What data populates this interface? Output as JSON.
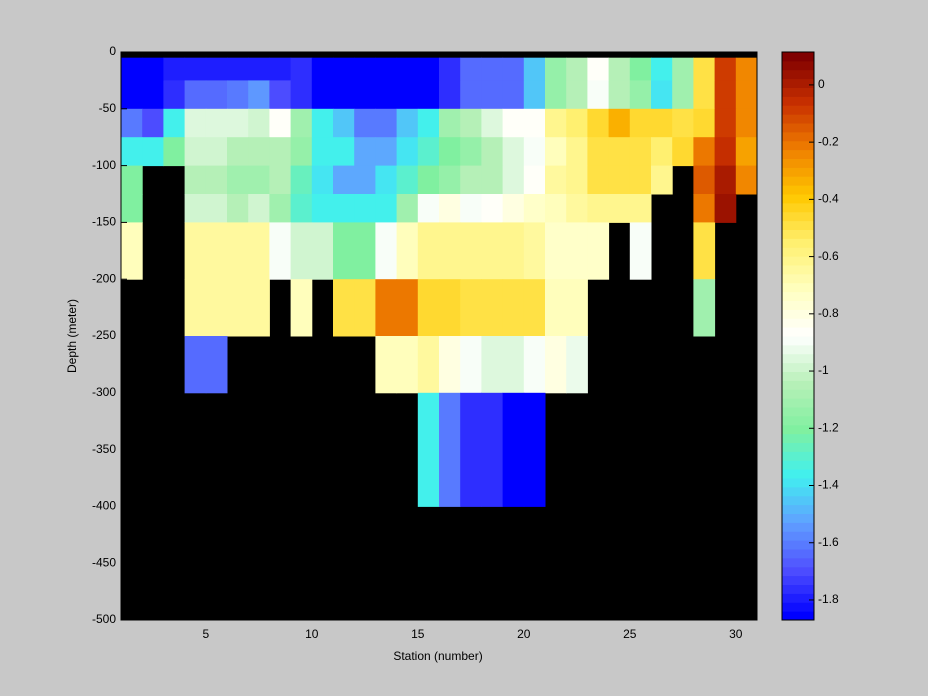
{
  "chart_data": {
    "type": "heatmap",
    "xlabel": "Station (number)",
    "ylabel": "Depth (meter)",
    "x": [
      1,
      2,
      3,
      4,
      5,
      6,
      7,
      8,
      9,
      10,
      11,
      12,
      13,
      14,
      15,
      16,
      17,
      18,
      19,
      20,
      21,
      22,
      23,
      24,
      25,
      26,
      27,
      28,
      29,
      30,
      31
    ],
    "y": [
      0,
      -5,
      -25,
      -50,
      -75,
      -100,
      -125,
      -150,
      -200,
      -250,
      -300,
      -400,
      -500
    ],
    "xlim": [
      1,
      31
    ],
    "ylim": [
      -500,
      0
    ],
    "xticks": [
      5,
      10,
      15,
      20,
      25,
      30
    ],
    "yticks": [
      0,
      -50,
      -100,
      -150,
      -200,
      -250,
      -300,
      -350,
      -400,
      -450,
      -500
    ],
    "background": "#000000",
    "clim": [
      -1.87,
      0.115
    ],
    "cticks": [
      0,
      -0.2,
      -0.4,
      -0.6,
      -0.8,
      -1,
      -1.2,
      -1.4,
      -1.6,
      -1.8
    ],
    "colormap": [
      "#0000ff",
      "#5050ff",
      "#60a0ff",
      "#40f0f0",
      "#80f0a0",
      "#b8f0b8",
      "#ffffff",
      "#ffffc0",
      "#fff070",
      "#ffc800",
      "#f08000",
      "#c83000",
      "#800000"
    ],
    "z": [
      [
        null,
        null,
        null,
        null,
        null,
        null,
        null,
        null,
        null,
        null,
        null,
        null,
        null,
        null,
        null,
        null,
        null,
        null,
        null,
        null,
        null,
        null,
        null,
        null,
        null,
        null,
        null,
        null,
        null,
        null
      ],
      [
        -1.85,
        -1.85,
        -1.8,
        -1.8,
        -1.8,
        -1.8,
        -1.8,
        -1.8,
        -1.75,
        -1.85,
        -1.85,
        -1.85,
        -1.85,
        -1.85,
        -1.85,
        -1.75,
        -1.65,
        -1.65,
        -1.65,
        -1.45,
        -1.15,
        -1.05,
        -0.85,
        -1.05,
        -1.2,
        -1.35,
        -1.1,
        -0.5,
        -0.1,
        -0.25
      ],
      [
        -1.85,
        -1.85,
        -1.75,
        -1.65,
        -1.65,
        -1.62,
        -1.55,
        -1.7,
        -1.75,
        -1.85,
        -1.85,
        -1.85,
        -1.85,
        -1.85,
        -1.85,
        -1.75,
        -1.65,
        -1.65,
        -1.65,
        -1.45,
        -1.15,
        -1.05,
        -0.9,
        -1.05,
        -1.15,
        -1.4,
        -1.1,
        -0.5,
        -0.1,
        -0.25
      ],
      [
        -1.6,
        -1.7,
        -1.35,
        -0.95,
        -0.95,
        -0.95,
        -1.0,
        -0.85,
        -1.1,
        -1.35,
        -1.45,
        -1.6,
        -1.6,
        -1.45,
        -1.35,
        -1.1,
        -1.05,
        -0.95,
        -0.85,
        -0.85,
        -0.62,
        -0.55,
        -0.45,
        -0.35,
        -0.45,
        -0.45,
        -0.5,
        -0.45,
        -0.1,
        -0.25
      ],
      [
        -1.35,
        -1.35,
        -1.2,
        -1.0,
        -1.0,
        -1.05,
        -1.05,
        -1.05,
        -1.15,
        -1.35,
        -1.35,
        -1.5,
        -1.5,
        -1.4,
        -1.3,
        -1.2,
        -1.15,
        -1.05,
        -0.95,
        -0.9,
        -0.7,
        -0.6,
        -0.5,
        -0.5,
        -0.5,
        -0.55,
        -0.45,
        -0.2,
        -0.05,
        -0.3
      ],
      [
        -1.2,
        null,
        null,
        -1.05,
        -1.05,
        -1.1,
        -1.1,
        -1.05,
        -1.25,
        -1.4,
        -1.5,
        -1.5,
        -1.4,
        -1.3,
        -1.2,
        -1.15,
        -1.05,
        -1.05,
        -0.95,
        -0.85,
        -0.65,
        -0.6,
        -0.5,
        -0.5,
        -0.5,
        -0.6,
        null,
        -0.15,
        0.0,
        -0.25
      ],
      [
        -1.2,
        null,
        null,
        -1.0,
        -1.0,
        -1.05,
        -1.0,
        -1.1,
        -1.3,
        -1.35,
        -1.35,
        -1.35,
        -1.35,
        -1.1,
        -0.9,
        -0.8,
        -0.9,
        -0.85,
        -0.8,
        -0.75,
        -0.7,
        -0.65,
        -0.62,
        -0.62,
        -0.62,
        null,
        null,
        -0.2,
        0.05,
        null
      ],
      [
        -0.7,
        null,
        null,
        -0.65,
        -0.65,
        -0.65,
        -0.65,
        -0.9,
        -1.0,
        -1.0,
        -1.2,
        -1.2,
        -0.9,
        -0.7,
        -0.6,
        -0.6,
        -0.6,
        -0.6,
        -0.6,
        -0.65,
        -0.75,
        -0.75,
        -0.75,
        null,
        -0.9,
        null,
        null,
        -0.5,
        null,
        null
      ],
      [
        null,
        null,
        null,
        -0.65,
        -0.65,
        -0.65,
        -0.65,
        null,
        -0.7,
        null,
        -0.5,
        -0.5,
        -0.2,
        -0.2,
        -0.45,
        -0.45,
        -0.5,
        -0.5,
        -0.5,
        -0.5,
        -0.7,
        -0.7,
        null,
        null,
        null,
        null,
        null,
        -1.1,
        null,
        null
      ],
      [
        null,
        null,
        null,
        -1.65,
        -1.65,
        null,
        null,
        null,
        null,
        null,
        null,
        null,
        -0.7,
        -0.7,
        -0.65,
        -0.8,
        -0.9,
        -0.95,
        -0.95,
        -0.9,
        -0.8,
        -0.92,
        null,
        null,
        null,
        null,
        null,
        null,
        null,
        null
      ],
      [
        null,
        null,
        null,
        null,
        null,
        null,
        null,
        null,
        null,
        null,
        null,
        null,
        null,
        null,
        -1.35,
        -1.6,
        -1.75,
        -1.75,
        -1.85,
        -1.85,
        null,
        null,
        null,
        null,
        null,
        null,
        null,
        null,
        null,
        null
      ],
      [
        null,
        null,
        null,
        null,
        null,
        null,
        null,
        null,
        null,
        null,
        null,
        null,
        null,
        null,
        null,
        null,
        null,
        null,
        null,
        null,
        null,
        null,
        null,
        null,
        null,
        null,
        null,
        null,
        null,
        null
      ]
    ]
  }
}
